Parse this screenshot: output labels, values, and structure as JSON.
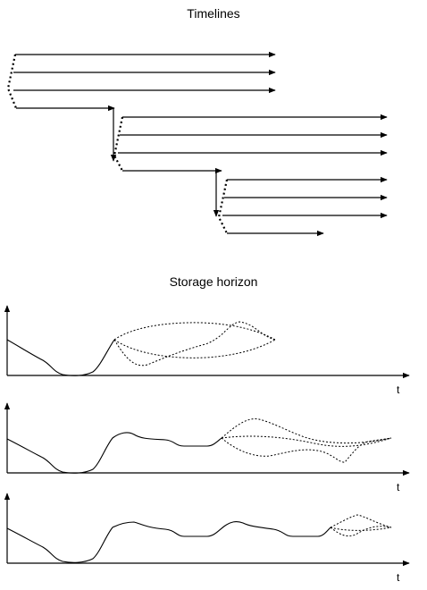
{
  "diagram": {
    "timelines_title": "Timelines",
    "storage_title": "Storage horizon",
    "axis_t_label": "t",
    "line_color": "#000000"
  }
}
